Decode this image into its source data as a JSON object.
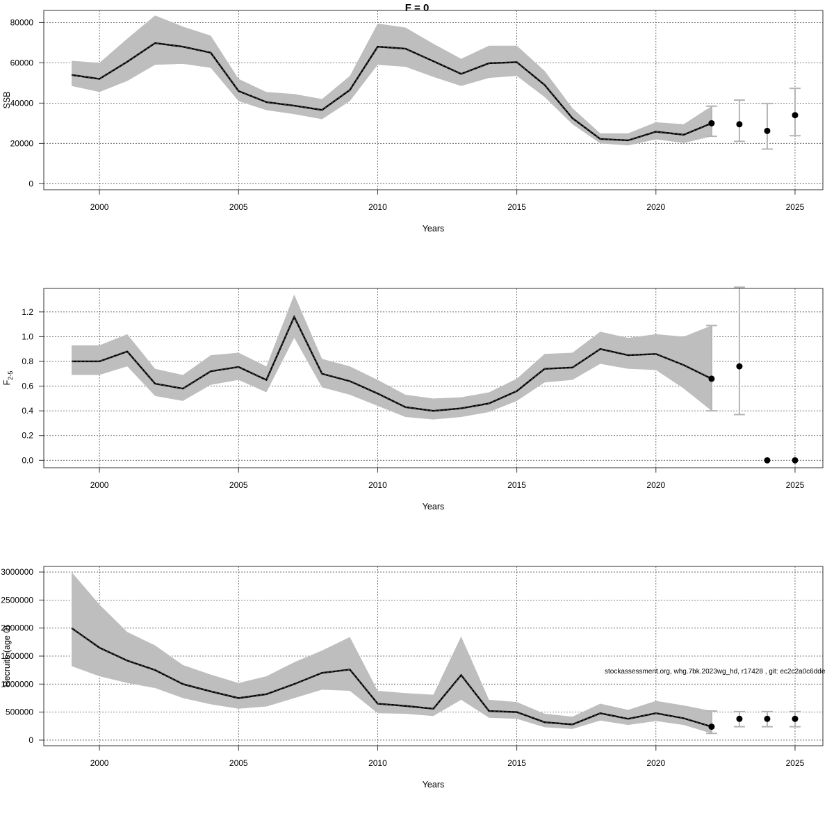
{
  "title": "F = 0",
  "footnote": "stockassessment.org, whg.7bk.2023wg_hd, r17428 , git: ec2c2a0c6dde",
  "colors": {
    "band": "#bebebe",
    "line": "#000000",
    "errorbar": "#b4b4b4",
    "grid": "#555555"
  },
  "chart_data": [
    {
      "type": "line",
      "panel": "ssb",
      "title": "F = 0",
      "xlabel": "Years",
      "ylabel": "SSB",
      "xlim": [
        1998,
        2026
      ],
      "ylim": [
        -3000,
        86000
      ],
      "x_ticks": [
        "2000",
        "2005",
        "2010",
        "2015",
        "2020",
        "2025"
      ],
      "y_ticks": [
        "0",
        "20000",
        "40000",
        "60000",
        "80000"
      ],
      "grid": true,
      "series": [
        {
          "x": [
            1999,
            2000,
            2001,
            2002,
            2003,
            2004,
            2005,
            2006,
            2007,
            2008,
            2009,
            2010,
            2011,
            2012,
            2013,
            2014,
            2015,
            2016,
            2017,
            2018,
            2019,
            2020,
            2021,
            2022
          ],
          "values": [
            54000,
            52000,
            60500,
            69800,
            68000,
            65000,
            46000,
            40500,
            38700,
            36600,
            46500,
            68000,
            67000,
            60800,
            54500,
            59800,
            60300,
            49000,
            32500,
            22200,
            21500,
            25800,
            24300,
            30000
          ],
          "lower": [
            48500,
            45500,
            51000,
            59000,
            59500,
            57500,
            41000,
            36500,
            34500,
            32000,
            41000,
            59000,
            58000,
            53000,
            48500,
            52500,
            53500,
            43000,
            29500,
            20000,
            19000,
            22000,
            20200,
            23500
          ],
          "upper": [
            61000,
            60000,
            72000,
            83500,
            78000,
            73500,
            52000,
            45500,
            44500,
            42000,
            53500,
            79500,
            77500,
            69500,
            62000,
            68500,
            68500,
            56000,
            37500,
            25000,
            25000,
            30500,
            29500,
            38500
          ]
        }
      ],
      "forecast": {
        "x": [
          2022,
          2023,
          2024,
          2025
        ],
        "values": [
          30000,
          29500,
          26200,
          34000
        ],
        "lower": [
          23500,
          21000,
          17200,
          23800
        ],
        "upper": [
          38500,
          41500,
          39800,
          47300
        ]
      }
    },
    {
      "type": "line",
      "panel": "fbar",
      "xlabel": "Years",
      "ylabel": "F",
      "ylabel_sub": "2-5",
      "xlim": [
        1998,
        2026
      ],
      "ylim": [
        -0.06,
        1.39
      ],
      "x_ticks": [
        "2000",
        "2005",
        "2010",
        "2015",
        "2020",
        "2025"
      ],
      "y_ticks": [
        "0.0",
        "0.2",
        "0.4",
        "0.6",
        "0.8",
        "1.0",
        "1.2"
      ],
      "grid": true,
      "series": [
        {
          "x": [
            1999,
            2000,
            2001,
            2002,
            2003,
            2004,
            2005,
            2006,
            2007,
            2008,
            2009,
            2010,
            2011,
            2012,
            2013,
            2014,
            2015,
            2016,
            2017,
            2018,
            2019,
            2020,
            2021,
            2022
          ],
          "values": [
            0.8,
            0.8,
            0.88,
            0.62,
            0.58,
            0.72,
            0.755,
            0.65,
            1.16,
            0.7,
            0.64,
            0.54,
            0.43,
            0.4,
            0.42,
            0.46,
            0.56,
            0.74,
            0.75,
            0.9,
            0.85,
            0.86,
            0.77,
            0.66
          ],
          "lower": [
            0.69,
            0.69,
            0.76,
            0.52,
            0.48,
            0.61,
            0.65,
            0.55,
            0.99,
            0.59,
            0.53,
            0.44,
            0.35,
            0.33,
            0.35,
            0.39,
            0.48,
            0.63,
            0.65,
            0.78,
            0.74,
            0.73,
            0.58,
            0.4
          ],
          "upper": [
            0.93,
            0.93,
            1.02,
            0.74,
            0.69,
            0.85,
            0.87,
            0.76,
            1.34,
            0.82,
            0.76,
            0.65,
            0.53,
            0.5,
            0.51,
            0.55,
            0.66,
            0.86,
            0.87,
            1.04,
            0.99,
            1.02,
            1.0,
            1.09
          ]
        }
      ],
      "forecast": {
        "x": [
          2022,
          2023,
          2024,
          2025
        ],
        "values": [
          0.66,
          0.76,
          0.0,
          0.0
        ],
        "lower": [
          0.4,
          0.37,
          null,
          null
        ],
        "upper": [
          1.09,
          1.4,
          null,
          null
        ]
      }
    },
    {
      "type": "line",
      "panel": "recruits",
      "xlabel": "Years",
      "ylabel": "Recruits (age 0)",
      "xlim": [
        1998,
        2026
      ],
      "ylim": [
        -100000,
        3100000
      ],
      "x_ticks": [
        "2000",
        "2005",
        "2010",
        "2015",
        "2020",
        "2025"
      ],
      "y_ticks": [
        "0",
        "500000",
        "1000000",
        "1500000",
        "2000000",
        "2500000",
        "3000000"
      ],
      "y_tick_text": [
        "0",
        "500000",
        "1000000",
        "1500000",
        "2000000",
        "2500000",
        "3000000"
      ],
      "grid": true,
      "series": [
        {
          "x": [
            1999,
            2000,
            2001,
            2002,
            2003,
            2004,
            2005,
            2006,
            2007,
            2008,
            2009,
            2010,
            2011,
            2012,
            2013,
            2014,
            2015,
            2016,
            2017,
            2018,
            2019,
            2020,
            2021,
            2022
          ],
          "values": [
            2000000,
            1650000,
            1420000,
            1250000,
            1000000,
            870000,
            750000,
            820000,
            1000000,
            1200000,
            1260000,
            650000,
            610000,
            560000,
            1160000,
            520000,
            500000,
            320000,
            280000,
            480000,
            380000,
            480000,
            390000,
            240000
          ],
          "lower": [
            1320000,
            1140000,
            1020000,
            930000,
            750000,
            640000,
            560000,
            600000,
            750000,
            900000,
            880000,
            480000,
            470000,
            430000,
            720000,
            400000,
            380000,
            230000,
            200000,
            350000,
            270000,
            340000,
            270000,
            120000
          ],
          "upper": [
            3000000,
            2420000,
            1930000,
            1690000,
            1340000,
            1170000,
            1020000,
            1140000,
            1390000,
            1600000,
            1840000,
            880000,
            840000,
            810000,
            1850000,
            720000,
            680000,
            470000,
            420000,
            650000,
            540000,
            700000,
            620000,
            520000
          ]
        }
      ],
      "forecast": {
        "x": [
          2022,
          2023,
          2024,
          2025
        ],
        "values": [
          240000,
          380000,
          380000,
          380000
        ],
        "lower": [
          120000,
          240000,
          240000,
          240000
        ],
        "upper": [
          520000,
          510000,
          510000,
          510000
        ]
      }
    }
  ]
}
